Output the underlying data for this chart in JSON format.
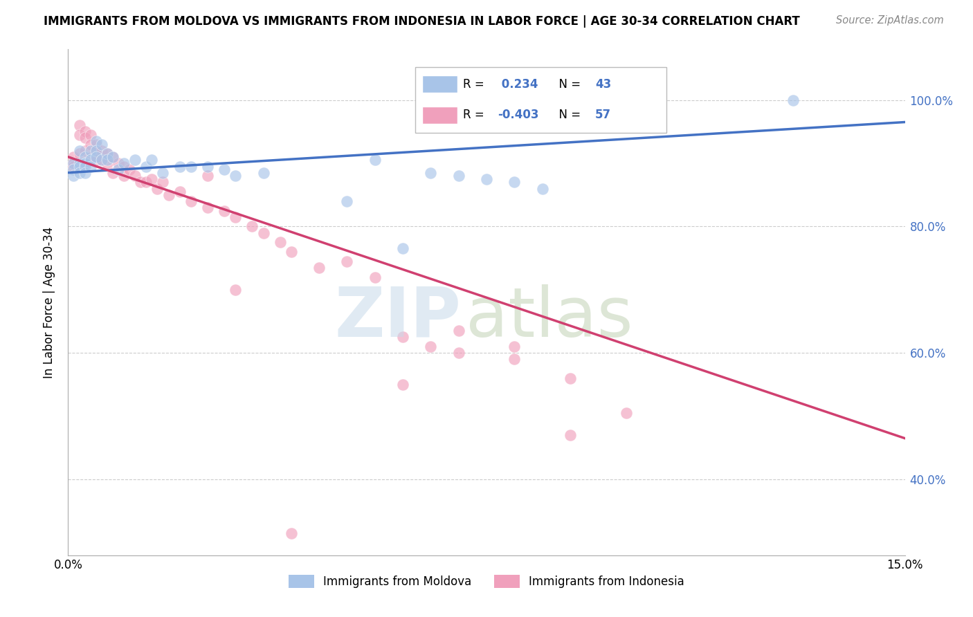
{
  "title": "IMMIGRANTS FROM MOLDOVA VS IMMIGRANTS FROM INDONESIA IN LABOR FORCE | AGE 30-34 CORRELATION CHART",
  "source": "Source: ZipAtlas.com",
  "ylabel": "In Labor Force | Age 30-34",
  "r_moldova": 0.234,
  "n_moldova": 43,
  "r_indonesia": -0.403,
  "n_indonesia": 57,
  "moldova_color": "#a8c4e8",
  "indonesia_color": "#f0a0bc",
  "moldova_line_color": "#4472c4",
  "indonesia_line_color": "#d04070",
  "xlim_min": 0.0,
  "xlim_max": 0.15,
  "ylim_min": 0.28,
  "ylim_max": 1.08,
  "ytick_vals": [
    0.4,
    0.6,
    0.8,
    1.0
  ],
  "ytick_labels": [
    "40.0%",
    "60.0%",
    "80.0%",
    "100.0%"
  ],
  "xtick_vals": [
    0.0,
    0.03,
    0.06,
    0.09,
    0.12,
    0.15
  ],
  "xtick_labels": [
    "0.0%",
    "",
    "",
    "",
    "",
    "15.0%"
  ],
  "moldova_x": [
    0.001,
    0.001,
    0.001,
    0.002,
    0.002,
    0.002,
    0.002,
    0.003,
    0.003,
    0.003,
    0.003,
    0.004,
    0.004,
    0.004,
    0.005,
    0.005,
    0.005,
    0.006,
    0.006,
    0.007,
    0.007,
    0.008,
    0.009,
    0.01,
    0.012,
    0.014,
    0.015,
    0.017,
    0.02,
    0.022,
    0.025,
    0.028,
    0.03,
    0.035,
    0.05,
    0.055,
    0.06,
    0.065,
    0.07,
    0.075,
    0.08,
    0.085,
    0.13
  ],
  "moldova_y": [
    0.9,
    0.89,
    0.88,
    0.92,
    0.9,
    0.895,
    0.885,
    0.91,
    0.9,
    0.895,
    0.885,
    0.92,
    0.905,
    0.895,
    0.935,
    0.92,
    0.91,
    0.93,
    0.905,
    0.915,
    0.905,
    0.91,
    0.89,
    0.9,
    0.905,
    0.895,
    0.905,
    0.885,
    0.895,
    0.895,
    0.895,
    0.89,
    0.88,
    0.885,
    0.84,
    0.905,
    0.765,
    0.885,
    0.88,
    0.875,
    0.87,
    0.86,
    1.0
  ],
  "indonesia_x": [
    0.001,
    0.001,
    0.001,
    0.002,
    0.002,
    0.002,
    0.003,
    0.003,
    0.003,
    0.004,
    0.004,
    0.004,
    0.005,
    0.005,
    0.005,
    0.006,
    0.006,
    0.007,
    0.007,
    0.008,
    0.008,
    0.009,
    0.01,
    0.01,
    0.011,
    0.012,
    0.013,
    0.014,
    0.015,
    0.016,
    0.017,
    0.018,
    0.02,
    0.022,
    0.025,
    0.028,
    0.03,
    0.033,
    0.035,
    0.038,
    0.04,
    0.045,
    0.05,
    0.055,
    0.06,
    0.065,
    0.07,
    0.08,
    0.09,
    0.1,
    0.025,
    0.03,
    0.06,
    0.07,
    0.08,
    0.09,
    0.04
  ],
  "indonesia_y": [
    0.91,
    0.9,
    0.895,
    0.96,
    0.945,
    0.915,
    0.95,
    0.94,
    0.92,
    0.945,
    0.93,
    0.91,
    0.93,
    0.92,
    0.905,
    0.92,
    0.905,
    0.915,
    0.9,
    0.91,
    0.885,
    0.9,
    0.895,
    0.88,
    0.89,
    0.88,
    0.87,
    0.87,
    0.875,
    0.86,
    0.87,
    0.85,
    0.855,
    0.84,
    0.83,
    0.825,
    0.815,
    0.8,
    0.79,
    0.775,
    0.76,
    0.735,
    0.745,
    0.72,
    0.625,
    0.61,
    0.635,
    0.59,
    0.56,
    0.505,
    0.88,
    0.7,
    0.55,
    0.6,
    0.61,
    0.47,
    0.315
  ],
  "legend_label_moldova": "Immigrants from Moldova",
  "legend_label_indonesia": "Immigrants from Indonesia",
  "watermark_zip_color": "#c8daea",
  "watermark_atlas_color": "#b5c9a5"
}
